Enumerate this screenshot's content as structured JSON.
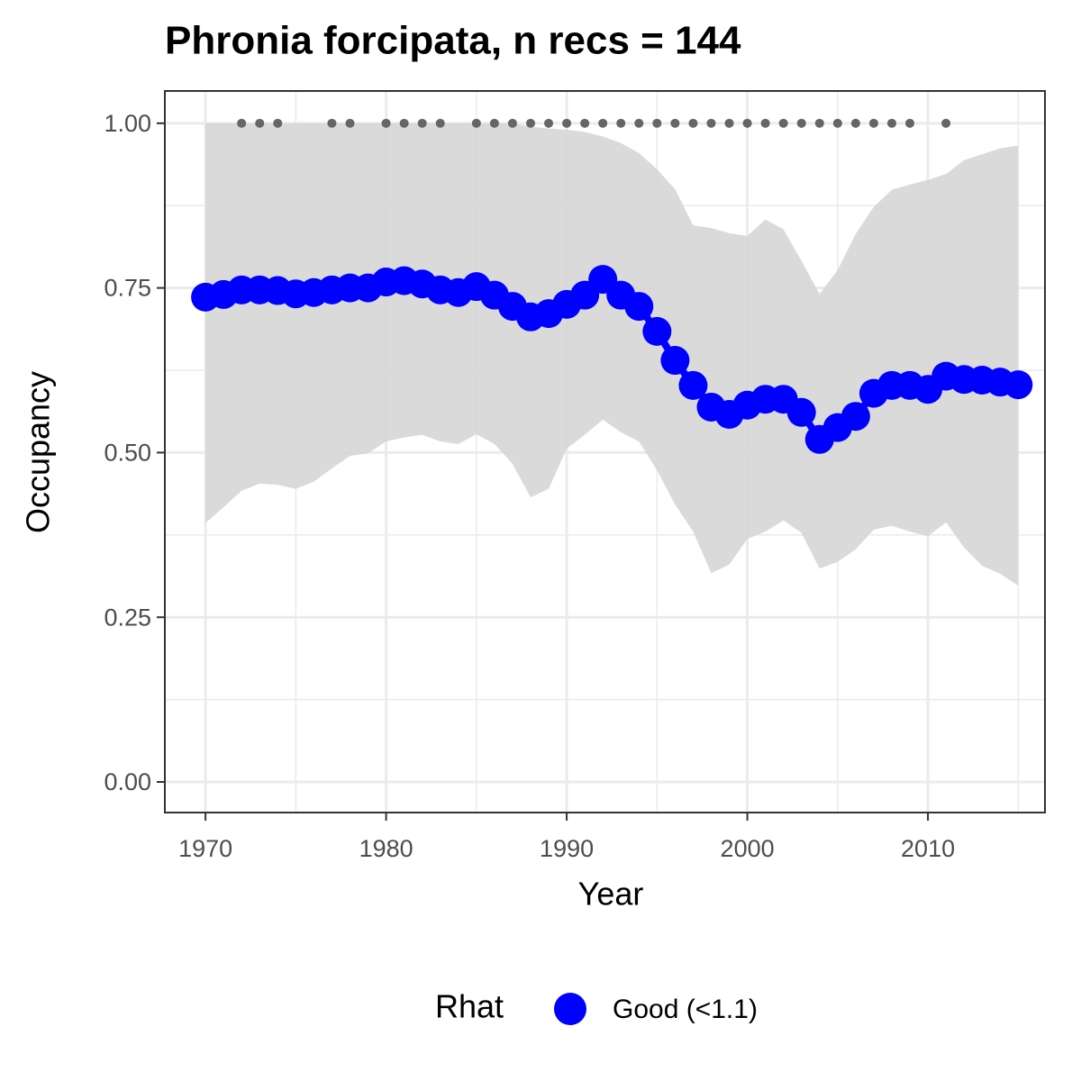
{
  "chart_data": {
    "type": "line",
    "title": "Phronia forcipata, n recs = 144",
    "x_label": "Year",
    "y_label": "Occupancy",
    "x": [
      1970,
      1971,
      1972,
      1973,
      1974,
      1975,
      1976,
      1977,
      1978,
      1979,
      1980,
      1981,
      1982,
      1983,
      1984,
      1985,
      1986,
      1987,
      1988,
      1989,
      1990,
      1991,
      1992,
      1993,
      1994,
      1995,
      1996,
      1997,
      1998,
      1999,
      2000,
      2001,
      2002,
      2003,
      2004,
      2005,
      2006,
      2007,
      2008,
      2009,
      2010,
      2011,
      2012,
      2013,
      2014,
      2015
    ],
    "series": [
      {
        "name": "Good (<1.1)",
        "color": "#0000ff",
        "values": [
          0.736,
          0.74,
          0.747,
          0.747,
          0.746,
          0.741,
          0.743,
          0.747,
          0.75,
          0.75,
          0.759,
          0.761,
          0.756,
          0.747,
          0.743,
          0.752,
          0.739,
          0.722,
          0.706,
          0.711,
          0.725,
          0.739,
          0.763,
          0.739,
          0.722,
          0.684,
          0.64,
          0.602,
          0.569,
          0.558,
          0.572,
          0.581,
          0.581,
          0.561,
          0.52,
          0.538,
          0.555,
          0.59,
          0.602,
          0.602,
          0.596,
          0.616,
          0.611,
          0.61,
          0.607,
          0.603
        ]
      }
    ],
    "ribbon": {
      "color": "#d6d6d6",
      "upper": [
        1.0,
        1.0,
        1.0,
        1.0,
        1.0,
        1.0,
        1.0,
        1.0,
        1.0,
        1.0,
        1.0,
        1.0,
        1.0,
        1.0,
        1.0,
        1.0,
        1.0,
        1.0,
        0.995,
        0.992,
        0.99,
        0.987,
        0.98,
        0.97,
        0.955,
        0.93,
        0.9,
        0.845,
        0.841,
        0.833,
        0.829,
        0.854,
        0.839,
        0.791,
        0.741,
        0.777,
        0.832,
        0.873,
        0.899,
        0.907,
        0.914,
        0.923,
        0.944,
        0.953,
        0.962,
        0.966
      ],
      "lower": [
        0.393,
        0.417,
        0.442,
        0.453,
        0.451,
        0.445,
        0.456,
        0.476,
        0.495,
        0.499,
        0.517,
        0.523,
        0.527,
        0.517,
        0.513,
        0.528,
        0.513,
        0.483,
        0.432,
        0.445,
        0.506,
        0.527,
        0.55,
        0.531,
        0.517,
        0.473,
        0.421,
        0.38,
        0.317,
        0.33,
        0.369,
        0.38,
        0.397,
        0.378,
        0.324,
        0.334,
        0.353,
        0.383,
        0.389,
        0.38,
        0.373,
        0.394,
        0.356,
        0.328,
        0.316,
        0.298
      ]
    },
    "records": {
      "color": "#666666",
      "level": 1,
      "x": [
        1972,
        1973,
        1974,
        1977,
        1978,
        1980,
        1981,
        1982,
        1983,
        1985,
        1986,
        1987,
        1988,
        1989,
        1990,
        1991,
        1992,
        1993,
        1994,
        1995,
        1996,
        1997,
        1998,
        1999,
        2000,
        2001,
        2002,
        2003,
        2004,
        2005,
        2006,
        2007,
        2008,
        2009,
        2011
      ]
    },
    "xlim": [
      1967.75,
      2016.48
    ],
    "ylim": [
      -0.0465,
      1.049
    ],
    "xticks": [
      1970,
      1980,
      1990,
      2000,
      2010
    ],
    "x_minor_ticks": [
      1975,
      1985,
      1995,
      2005,
      2015
    ],
    "yticks": [
      {
        "value": 0,
        "label": "0.00"
      },
      {
        "value": 0.25,
        "label": "0.25"
      },
      {
        "value": 0.5,
        "label": "0.50"
      },
      {
        "value": 0.75,
        "label": "0.75"
      },
      {
        "value": 1,
        "label": "1.00"
      }
    ],
    "y_minor_ticks": [
      0.125,
      0.375,
      0.625,
      0.875
    ],
    "grid": true,
    "legend_title": "Rhat",
    "legend_position": "bottom"
  }
}
